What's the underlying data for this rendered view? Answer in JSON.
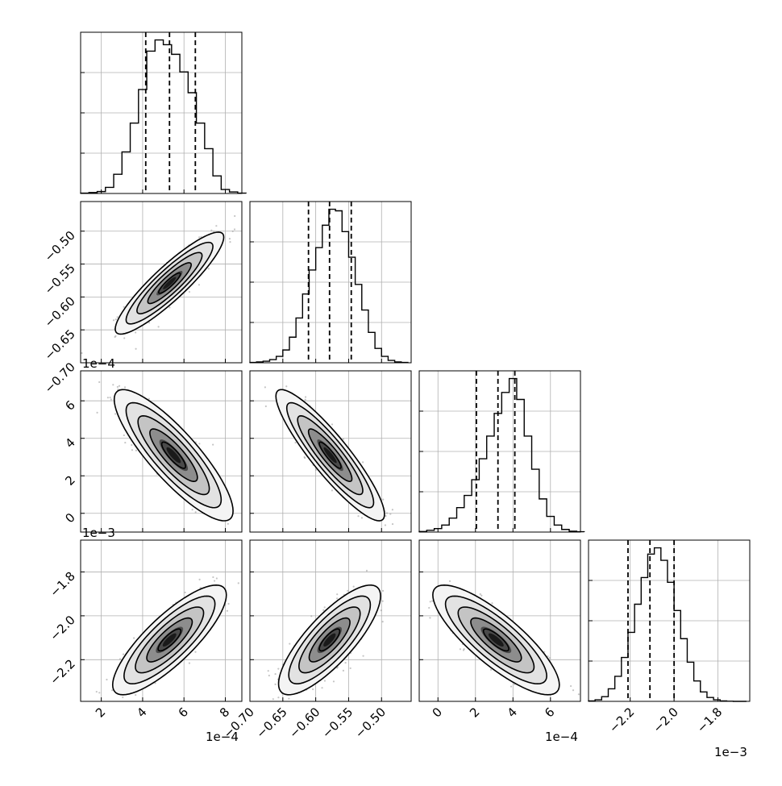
{
  "chart_data": {
    "type": "corner",
    "description_level": "posterior samples corner plot, 4 parameters",
    "grid": true,
    "colors": {
      "axes": "#000000",
      "grid": "#b0b0b0",
      "hist": "#000000",
      "scatter": "#9e9e9e"
    },
    "parameters": [
      {
        "range": [
          1.0,
          8.8
        ],
        "ticks": [
          2,
          4,
          6,
          8
        ],
        "tick_labels": [
          "2",
          "4",
          "6",
          "8"
        ],
        "offset_label": "1e−4",
        "quantiles": [
          4.15,
          5.3,
          6.55
        ],
        "hist_bins": [
          1.0,
          1.4,
          1.8,
          2.2,
          2.6,
          3.0,
          3.4,
          3.8,
          4.2,
          4.6,
          5.0,
          5.4,
          5.8,
          6.2,
          6.6,
          7.0,
          7.4,
          7.8,
          8.2,
          8.6
        ],
        "hist_counts": [
          0.2,
          0.6,
          1.2,
          3.8,
          12,
          26,
          44,
          65,
          89,
          96,
          93,
          87,
          76,
          63,
          44,
          28,
          11,
          2.5,
          1,
          0.2
        ]
      },
      {
        "range": [
          -0.7,
          -0.455
        ],
        "ticks": [
          -0.7,
          -0.65,
          -0.6,
          -0.55,
          -0.5
        ],
        "tick_labels": [
          "−0.70",
          "−0.65",
          "−0.60",
          "−0.55",
          "−0.50"
        ],
        "offset_label": "",
        "quantiles": [
          -0.611,
          -0.579,
          -0.546
        ],
        "hist_bins": [
          -0.7,
          -0.69,
          -0.68,
          -0.67,
          -0.66,
          -0.65,
          -0.64,
          -0.63,
          -0.62,
          -0.61,
          -0.6,
          -0.59,
          -0.58,
          -0.57,
          -0.56,
          -0.55,
          -0.54,
          -0.53,
          -0.52,
          -0.51,
          -0.5,
          -0.49,
          -0.48,
          -0.47
        ],
        "hist_counts": [
          0.2,
          0.5,
          1,
          2,
          4,
          8,
          16,
          28,
          43,
          58,
          72,
          86,
          96,
          95,
          82,
          66,
          49,
          33,
          19,
          9,
          4,
          1.5,
          0.5,
          0.2
        ]
      },
      {
        "range": [
          -1.0,
          7.6
        ],
        "ticks": [
          0,
          2,
          4,
          6
        ],
        "tick_labels": [
          "0",
          "2",
          "4",
          "6"
        ],
        "offset_label": "1e−4",
        "quantiles": [
          2.05,
          3.2,
          4.1
        ],
        "hist_bins": [
          -1.0,
          -0.6,
          -0.2,
          0.2,
          0.6,
          1.0,
          1.4,
          1.8,
          2.2,
          2.6,
          3.0,
          3.4,
          3.8,
          4.2,
          4.6,
          5.0,
          5.4,
          5.8,
          6.2,
          6.6,
          7.0,
          7.4
        ],
        "hist_counts": [
          0.3,
          1,
          2,
          4,
          8,
          14,
          21,
          30,
          42,
          55,
          68,
          80,
          88,
          76,
          55,
          36,
          19,
          9,
          4,
          1.5,
          0.5,
          0.2
        ]
      },
      {
        "range": [
          -2.39,
          -1.655
        ],
        "ticks": [
          -2.2,
          -2.0,
          -1.8
        ],
        "tick_labels": [
          "−2.2",
          "−2.0",
          "−1.8"
        ],
        "offset_label": "1e−3",
        "quantiles": [
          -2.21,
          -2.11,
          -2.0
        ],
        "hist_bins": [
          -2.39,
          -2.36,
          -2.33,
          -2.3,
          -2.27,
          -2.24,
          -2.21,
          -2.18,
          -2.15,
          -2.12,
          -2.09,
          -2.06,
          -2.03,
          -2.0,
          -1.97,
          -1.94,
          -1.91,
          -1.88,
          -1.85,
          -1.82,
          -1.79,
          -1.76,
          -1.73,
          -1.7,
          -1.67
        ],
        "hist_counts": [
          0.3,
          1,
          3,
          8,
          16,
          28,
          44,
          62,
          79,
          94,
          98,
          90,
          76,
          58,
          40,
          25,
          13,
          6,
          2.5,
          1,
          0.3,
          0.1,
          0,
          0
        ]
      }
    ],
    "y_axes": [
      null,
      {
        "range": [
          -0.7,
          -0.455
        ],
        "ticks": [
          -0.7,
          -0.65,
          -0.6,
          -0.55,
          -0.5
        ],
        "tick_labels": [
          "−0.70",
          "−0.65",
          "−0.60",
          "−0.55",
          "−0.50"
        ],
        "offset_label": ""
      },
      {
        "range": [
          -1.0,
          7.6
        ],
        "ticks": [
          0,
          2,
          4,
          6
        ],
        "tick_labels": [
          "0",
          "2",
          "4",
          "6"
        ],
        "offset_label": "1e−4"
      },
      {
        "range": [
          -2.39,
          -1.655
        ],
        "ticks": [
          -2.2,
          -2.0,
          -1.8
        ],
        "tick_labels": [
          "−2.2",
          "−2.0",
          "−1.8"
        ],
        "offset_label": "1e−3"
      }
    ],
    "pairs": [
      {
        "row": 1,
        "col": 0,
        "mean": [
          5.3,
          -0.579
        ],
        "sd": [
          1.05,
          0.031
        ],
        "corr": 0.9
      },
      {
        "row": 2,
        "col": 0,
        "mean": [
          5.5,
          3.1
        ],
        "sd": [
          1.15,
          1.4
        ],
        "corr": -0.85
      },
      {
        "row": 2,
        "col": 1,
        "mean": [
          -0.578,
          3.1
        ],
        "sd": [
          0.033,
          1.4
        ],
        "corr": -0.9
      },
      {
        "row": 3,
        "col": 0,
        "mean": [
          5.3,
          -2.11
        ],
        "sd": [
          1.1,
          0.1
        ],
        "corr": 0.82
      },
      {
        "row": 3,
        "col": 1,
        "mean": [
          -0.579,
          -2.11
        ],
        "sd": [
          0.031,
          0.1
        ],
        "corr": 0.8
      },
      {
        "row": 3,
        "col": 2,
        "mean": [
          3.1,
          -2.11
        ],
        "sd": [
          1.35,
          0.1
        ],
        "corr": -0.82
      }
    ]
  }
}
